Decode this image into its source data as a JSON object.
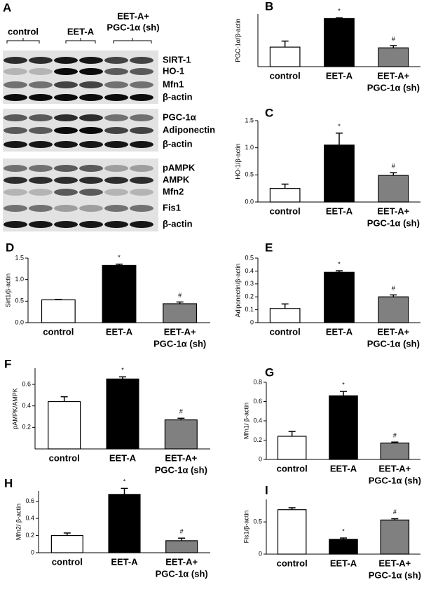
{
  "panel_a": {
    "label": "A",
    "groups": [
      "control",
      "EET-A",
      [
        "EET-A+",
        "PGC-1α (sh)"
      ]
    ],
    "rows": [
      "SIRT-1",
      "HO-1",
      "Mfn1",
      "β-actin",
      "PGC-1α",
      "Adiponectin",
      "β-actin",
      "pAMPK",
      "AMPK",
      "Mfn2",
      "Fis1",
      "β-actin"
    ]
  },
  "chart_data": [
    {
      "panel": "B",
      "type": "bar",
      "y_label": "PGC-1α/β-actin",
      "categories": [
        "control",
        "EET-A",
        [
          "EET-A+",
          "PGC-1α (sh)"
        ]
      ],
      "values": [
        0.26,
        0.64,
        0.25
      ],
      "errors": [
        0.08,
        0.01,
        0.03
      ],
      "annotations": [
        null,
        "*",
        "#"
      ],
      "colors": [
        "#ffffff",
        "#000000",
        "#808080"
      ],
      "ylim": [
        0,
        0.7
      ]
    },
    {
      "panel": "C",
      "type": "bar",
      "y_label": "HO-1/β-actin",
      "categories": [
        "control",
        "EET-A",
        [
          "EET-A+",
          "PGC-1α (sh)"
        ]
      ],
      "values": [
        0.25,
        1.05,
        0.49
      ],
      "errors": [
        0.08,
        0.22,
        0.05
      ],
      "annotations": [
        null,
        "*",
        "#"
      ],
      "colors": [
        "#ffffff",
        "#000000",
        "#808080"
      ],
      "ylim": [
        0,
        1.5
      ],
      "yticks": [
        {
          "value": 0,
          "label": "0.0"
        },
        0.5,
        {
          "value": 1,
          "label": "1.0"
        },
        1.5
      ]
    },
    {
      "panel": "D",
      "type": "bar",
      "y_label": "Sirt1/β-actin",
      "categories": [
        "control",
        "EET-A",
        [
          "EET-A+",
          "PGC-1α (sh)"
        ]
      ],
      "values": [
        0.53,
        1.33,
        0.44
      ],
      "errors": [
        0.01,
        0.03,
        0.04
      ],
      "annotations": [
        null,
        "*",
        "#"
      ],
      "colors": [
        "#ffffff",
        "#000000",
        "#808080"
      ],
      "ylim": [
        0,
        1.5
      ],
      "yticks": [
        {
          "value": 0,
          "label": "0.0"
        },
        0.5,
        {
          "value": 1,
          "label": "1.0"
        },
        1.5
      ]
    },
    {
      "panel": "E",
      "type": "bar",
      "y_label": "Adiponectin/β-actin",
      "categories": [
        "control",
        "EET-A",
        [
          "EET-A+",
          "PGC-1α (sh)"
        ]
      ],
      "values": [
        0.11,
        0.39,
        0.2
      ],
      "errors": [
        0.035,
        0.012,
        0.015
      ],
      "annotations": [
        null,
        "*",
        "#"
      ],
      "colors": [
        "#ffffff",
        "#000000",
        "#808080"
      ],
      "ylim": [
        0,
        0.5
      ],
      "yticks": [
        0,
        0.1,
        0.2,
        0.3,
        0.4,
        0.5
      ]
    },
    {
      "panel": "F",
      "type": "bar",
      "y_label": "pAMPK/AMPK",
      "categories": [
        "control",
        "EET-A",
        [
          "EET-A+",
          "PGC-1α (sh)"
        ]
      ],
      "values": [
        0.44,
        0.65,
        0.27
      ],
      "errors": [
        0.045,
        0.02,
        0.015
      ],
      "annotations": [
        null,
        "*",
        "#"
      ],
      "colors": [
        "#ffffff",
        "#000000",
        "#808080"
      ],
      "ylim": [
        0,
        0.75
      ],
      "yticks": [
        0.2,
        0.4,
        0.6
      ]
    },
    {
      "panel": "G",
      "type": "bar",
      "y_label": "Mfn1/ β-actin",
      "categories": [
        "control",
        "EET-A",
        [
          "EET-A+",
          "PGC-1α (sh)"
        ]
      ],
      "values": [
        0.24,
        0.66,
        0.17
      ],
      "errors": [
        0.05,
        0.045,
        0.01
      ],
      "annotations": [
        null,
        "*",
        "#"
      ],
      "colors": [
        "#ffffff",
        "#000000",
        "#808080"
      ],
      "ylim": [
        0,
        0.8
      ],
      "yticks": [
        0,
        0.2,
        0.4,
        0.6,
        0.8
      ]
    },
    {
      "panel": "H",
      "type": "bar",
      "y_label": "Mfn2/ β-actin",
      "categories": [
        "control",
        "EET-A",
        [
          "EET-A+",
          "PGC-1α (sh)"
        ]
      ],
      "values": [
        0.2,
        0.68,
        0.14
      ],
      "errors": [
        0.03,
        0.07,
        0.03
      ],
      "annotations": [
        null,
        "*",
        "#"
      ],
      "colors": [
        "#ffffff",
        "#000000",
        "#808080"
      ],
      "ylim": [
        0,
        0.72
      ],
      "yticks": [
        0,
        0.2,
        0.4,
        0.6
      ]
    },
    {
      "panel": "I",
      "type": "bar",
      "y_label": "Fis1/β-actin",
      "categories": [
        "control",
        "EET-A",
        [
          "EET-A+",
          "PGC-1α (sh)"
        ]
      ],
      "values": [
        0.69,
        0.23,
        0.53
      ],
      "errors": [
        0.03,
        0.02,
        0.02
      ],
      "annotations": [
        null,
        "*",
        "#"
      ],
      "colors": [
        "#ffffff",
        "#000000",
        "#808080"
      ],
      "ylim": [
        0,
        0.85
      ],
      "yticks": [
        0,
        0.5
      ]
    }
  ]
}
